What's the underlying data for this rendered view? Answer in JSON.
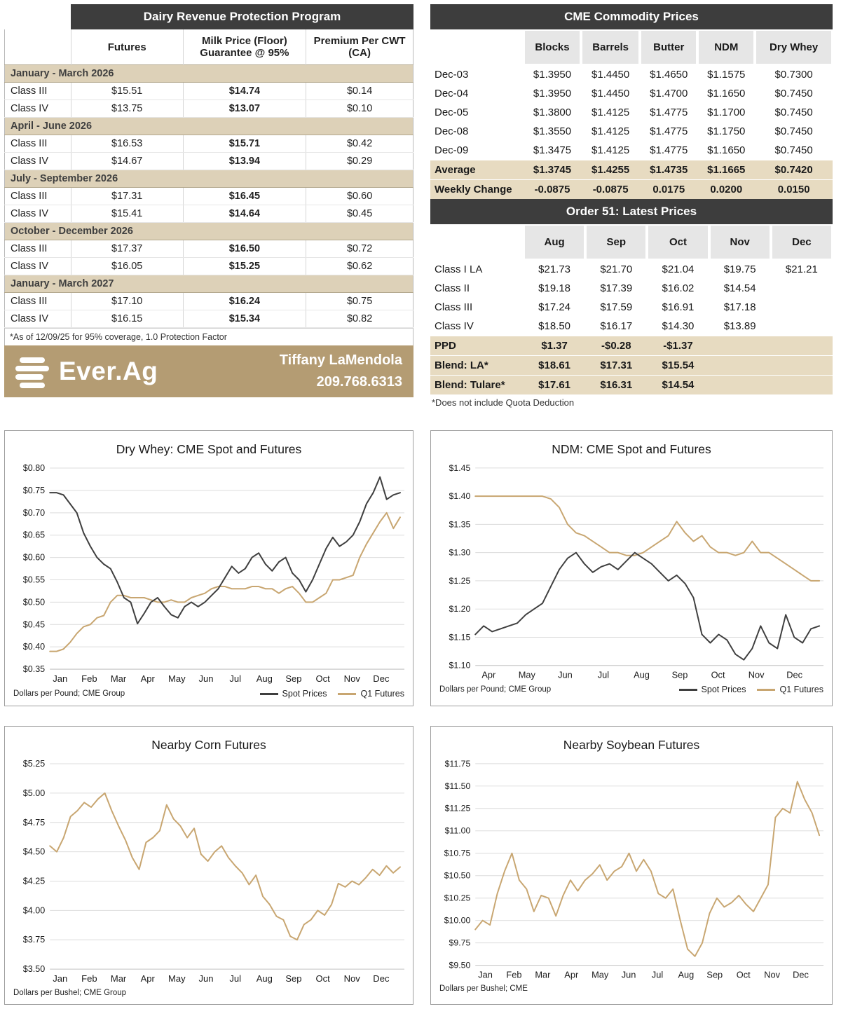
{
  "drp": {
    "title": "Dairy Revenue Protection Program",
    "col_headers": [
      "Futures",
      "Milk Price (Floor)\nGuarantee @ 95%",
      "Premium Per CWT\n(CA)"
    ],
    "sections": [
      {
        "label": "January - March 2026",
        "rows": [
          [
            "Class III",
            "$15.51",
            "$14.74",
            "$0.14"
          ],
          [
            "Class IV",
            "$13.75",
            "$13.07",
            "$0.10"
          ]
        ]
      },
      {
        "label": "April - June 2026",
        "rows": [
          [
            "Class III",
            "$16.53",
            "$15.71",
            "$0.42"
          ],
          [
            "Class IV",
            "$14.67",
            "$13.94",
            "$0.29"
          ]
        ]
      },
      {
        "label": "July - September 2026",
        "rows": [
          [
            "Class III",
            "$17.31",
            "$16.45",
            "$0.60"
          ],
          [
            "Class IV",
            "$15.41",
            "$14.64",
            "$0.45"
          ]
        ]
      },
      {
        "label": "October - December 2026",
        "rows": [
          [
            "Class III",
            "$17.37",
            "$16.50",
            "$0.72"
          ],
          [
            "Class IV",
            "$16.05",
            "$15.25",
            "$0.62"
          ]
        ]
      },
      {
        "label": "January - March 2027",
        "rows": [
          [
            "Class III",
            "$17.10",
            "$16.24",
            "$0.75"
          ],
          [
            "Class IV",
            "$16.15",
            "$15.34",
            "$0.82"
          ]
        ]
      }
    ],
    "footnote": "*As of 12/09/25 for 95% coverage, 1.0 Protection Factor"
  },
  "brand": {
    "logo_text": "Ever.Ag",
    "contact_name": "Tiffany LaMendola",
    "contact_phone": "209.768.6313",
    "bar_color": "#b49c73"
  },
  "cme": {
    "title": "CME Commodity Prices",
    "columns": [
      "Blocks",
      "Barrels",
      "Butter",
      "NDM",
      "Dry Whey"
    ],
    "rows": [
      {
        "label": "Dec-03",
        "values": [
          "$1.3950",
          "$1.4450",
          "$1.4650",
          "$1.1575",
          "$0.7300"
        ],
        "style": "normal"
      },
      {
        "label": "Dec-04",
        "values": [
          "$1.3950",
          "$1.4450",
          "$1.4700",
          "$1.1650",
          "$0.7450"
        ],
        "style": "normal"
      },
      {
        "label": "Dec-05",
        "values": [
          "$1.3800",
          "$1.4125",
          "$1.4775",
          "$1.1700",
          "$0.7450"
        ],
        "style": "normal"
      },
      {
        "label": "Dec-08",
        "values": [
          "$1.3550",
          "$1.4125",
          "$1.4775",
          "$1.1750",
          "$0.7450"
        ],
        "style": "normal"
      },
      {
        "label": "Dec-09",
        "values": [
          "$1.3475",
          "$1.4125",
          "$1.4775",
          "$1.1650",
          "$0.7450"
        ],
        "style": "normal"
      },
      {
        "label": "Average",
        "values": [
          "$1.3745",
          "$1.4255",
          "$1.4735",
          "$1.1665",
          "$0.7420"
        ],
        "style": "highlight"
      },
      {
        "label": "Weekly Change",
        "values": [
          "-0.0875",
          "-0.0875",
          "0.0175",
          "0.0200",
          "0.0150"
        ],
        "style": "highlight"
      }
    ]
  },
  "order51": {
    "title": "Order 51: Latest Prices",
    "columns": [
      "Aug",
      "Sep",
      "Oct",
      "Nov",
      "Dec"
    ],
    "rows": [
      {
        "label": "Class I LA",
        "values": [
          "$21.73",
          "$21.70",
          "$21.04",
          "$19.75",
          "$21.21"
        ],
        "style": "normal"
      },
      {
        "label": "Class II",
        "values": [
          "$19.18",
          "$17.39",
          "$16.02",
          "$14.54",
          ""
        ],
        "style": "normal"
      },
      {
        "label": "Class III",
        "values": [
          "$17.24",
          "$17.59",
          "$16.91",
          "$17.18",
          ""
        ],
        "style": "normal"
      },
      {
        "label": "Class IV",
        "values": [
          "$18.50",
          "$16.17",
          "$14.30",
          "$13.89",
          ""
        ],
        "style": "normal"
      },
      {
        "label": "PPD",
        "values": [
          "$1.37",
          "-$0.28",
          "-$1.37",
          "",
          ""
        ],
        "style": "highlight"
      },
      {
        "label": "Blend: LA*",
        "values": [
          "$18.61",
          "$17.31",
          "$15.54",
          "",
          ""
        ],
        "style": "highlight"
      },
      {
        "label": "Blend: Tulare*",
        "values": [
          "$17.61",
          "$16.31",
          "$14.54",
          "",
          ""
        ],
        "style": "highlight"
      }
    ],
    "footnote": "*Does not include Quota Deduction"
  },
  "chart_data": [
    {
      "type": "line",
      "title": "Dry Whey: CME Spot and Futures",
      "footer": "Dollars per Pound; CME Group",
      "ylim": [
        0.35,
        0.8
      ],
      "ytick_step": 0.05,
      "x_labels": [
        "Jan",
        "Feb",
        "Mar",
        "Apr",
        "May",
        "Jun",
        "Jul",
        "Aug",
        "Sep",
        "Oct",
        "Nov",
        "Dec"
      ],
      "grid": true,
      "legend_position": "bottom-right",
      "series": [
        {
          "name": "Spot Prices",
          "color": "#3f3f3f",
          "values": [
            0.745,
            0.745,
            0.74,
            0.72,
            0.7,
            0.655,
            0.625,
            0.6,
            0.585,
            0.575,
            0.545,
            0.51,
            0.5,
            0.452,
            0.475,
            0.5,
            0.51,
            0.49,
            0.472,
            0.465,
            0.49,
            0.5,
            0.49,
            0.5,
            0.515,
            0.53,
            0.555,
            0.58,
            0.565,
            0.575,
            0.6,
            0.61,
            0.585,
            0.57,
            0.59,
            0.6,
            0.565,
            0.55,
            0.523,
            0.55,
            0.585,
            0.62,
            0.645,
            0.625,
            0.635,
            0.65,
            0.68,
            0.72,
            0.745,
            0.78,
            0.73,
            0.74,
            0.745
          ]
        },
        {
          "name": "Q1 Futures",
          "color": "#c8a671",
          "values": [
            0.39,
            0.39,
            0.395,
            0.41,
            0.43,
            0.445,
            0.45,
            0.465,
            0.47,
            0.5,
            0.515,
            0.515,
            0.51,
            0.51,
            0.51,
            0.505,
            0.5,
            0.5,
            0.505,
            0.5,
            0.5,
            0.51,
            0.515,
            0.52,
            0.53,
            0.535,
            0.535,
            0.53,
            0.53,
            0.53,
            0.535,
            0.535,
            0.53,
            0.53,
            0.52,
            0.53,
            0.535,
            0.52,
            0.5,
            0.5,
            0.51,
            0.52,
            0.55,
            0.55,
            0.555,
            0.56,
            0.6,
            0.63,
            0.655,
            0.68,
            0.7,
            0.665,
            0.69
          ]
        }
      ]
    },
    {
      "type": "line",
      "title": "NDM: CME Spot and Futures",
      "footer": "Dollars per Pound; CME Group",
      "ylim": [
        1.1,
        1.45
      ],
      "ytick_step": 0.05,
      "x_labels": [
        "Apr",
        "May",
        "Jun",
        "Jul",
        "Aug",
        "Sep",
        "Oct",
        "Nov",
        "Dec"
      ],
      "grid": true,
      "legend_position": "bottom-right",
      "series": [
        {
          "name": "Spot Prices",
          "color": "#3f3f3f",
          "values": [
            1.155,
            1.17,
            1.16,
            1.165,
            1.17,
            1.175,
            1.19,
            1.2,
            1.21,
            1.24,
            1.27,
            1.29,
            1.3,
            1.28,
            1.265,
            1.275,
            1.28,
            1.27,
            1.285,
            1.3,
            1.29,
            1.28,
            1.265,
            1.25,
            1.26,
            1.245,
            1.22,
            1.155,
            1.14,
            1.155,
            1.145,
            1.12,
            1.11,
            1.13,
            1.17,
            1.14,
            1.13,
            1.19,
            1.15,
            1.14,
            1.165,
            1.17
          ]
        },
        {
          "name": "Q1 Futures",
          "color": "#c8a671",
          "values": [
            1.4,
            1.4,
            1.4,
            1.4,
            1.4,
            1.4,
            1.4,
            1.4,
            1.4,
            1.395,
            1.38,
            1.35,
            1.335,
            1.33,
            1.32,
            1.31,
            1.3,
            1.3,
            1.295,
            1.295,
            1.3,
            1.31,
            1.32,
            1.33,
            1.355,
            1.335,
            1.32,
            1.33,
            1.31,
            1.3,
            1.3,
            1.295,
            1.3,
            1.32,
            1.3,
            1.3,
            1.29,
            1.28,
            1.27,
            1.26,
            1.25,
            1.25
          ]
        }
      ]
    },
    {
      "type": "line",
      "title": "Nearby Corn Futures",
      "footer": "Dollars per Bushel; CME Group",
      "ylim": [
        3.5,
        5.25
      ],
      "ytick_step": 0.25,
      "x_labels": [
        "Jan",
        "Feb",
        "Mar",
        "Apr",
        "May",
        "Jun",
        "Jul",
        "Aug",
        "Sep",
        "Oct",
        "Nov",
        "Dec"
      ],
      "grid": true,
      "legend_position": "none",
      "series": [
        {
          "name": "Nearby Corn",
          "color": "#c8a671",
          "values": [
            4.55,
            4.5,
            4.62,
            4.8,
            4.85,
            4.92,
            4.88,
            4.95,
            5.0,
            4.85,
            4.72,
            4.6,
            4.45,
            4.35,
            4.58,
            4.62,
            4.68,
            4.9,
            4.78,
            4.72,
            4.62,
            4.7,
            4.48,
            4.42,
            4.5,
            4.55,
            4.45,
            4.38,
            4.32,
            4.22,
            4.3,
            4.12,
            4.05,
            3.95,
            3.92,
            3.78,
            3.75,
            3.88,
            3.92,
            4.0,
            3.96,
            4.05,
            4.23,
            4.2,
            4.25,
            4.22,
            4.28,
            4.35,
            4.3,
            4.38,
            4.32,
            4.37
          ]
        }
      ]
    },
    {
      "type": "line",
      "title": "Nearby Soybean Futures",
      "footer": "Dollars per Bushel; CME",
      "ylim": [
        9.5,
        11.75
      ],
      "ytick_step": 0.25,
      "x_labels": [
        "Jan",
        "Feb",
        "Mar",
        "Apr",
        "May",
        "Jun",
        "Jul",
        "Aug",
        "Sep",
        "Oct",
        "Nov",
        "Dec"
      ],
      "grid": true,
      "legend_position": "none",
      "series": [
        {
          "name": "Nearby Soybeans",
          "color": "#c8a671",
          "values": [
            9.9,
            10.0,
            9.95,
            10.3,
            10.55,
            10.75,
            10.45,
            10.35,
            10.1,
            10.28,
            10.25,
            10.05,
            10.28,
            10.45,
            10.33,
            10.45,
            10.52,
            10.62,
            10.45,
            10.55,
            10.6,
            10.75,
            10.55,
            10.68,
            10.55,
            10.3,
            10.25,
            10.35,
            10.0,
            9.68,
            9.6,
            9.75,
            10.08,
            10.25,
            10.15,
            10.2,
            10.28,
            10.18,
            10.1,
            10.25,
            10.4,
            11.15,
            11.25,
            11.2,
            11.55,
            11.35,
            11.2,
            10.95
          ]
        }
      ]
    }
  ]
}
